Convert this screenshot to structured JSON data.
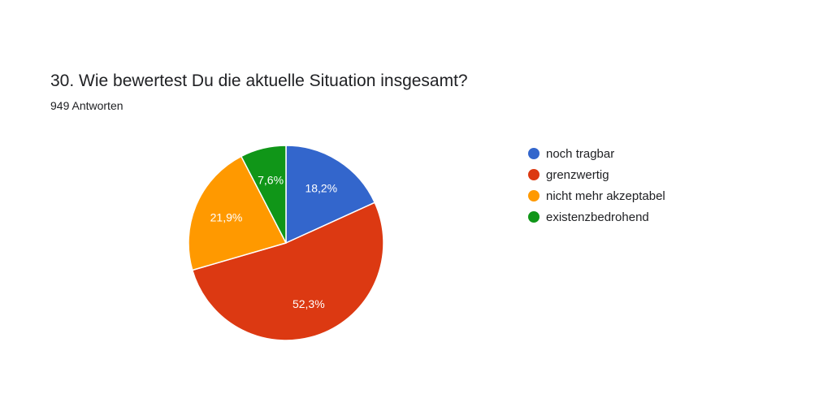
{
  "header": {
    "title": "30. Wie bewertest Du die aktuelle Situation insgesamt?",
    "responses": "949 Antworten"
  },
  "chart_data": {
    "type": "pie",
    "start_angle_deg": 90,
    "direction": "clockwise",
    "legend_position": "right",
    "slices": [
      {
        "name": "noch tragbar",
        "value": 18.2,
        "label": "18,2%",
        "color": "#3366cc"
      },
      {
        "name": "grenzwertig",
        "value": 52.3,
        "label": "52,3%",
        "color": "#dc3912"
      },
      {
        "name": "nicht mehr akzeptabel",
        "value": 21.9,
        "label": "21,9%",
        "color": "#ff9900"
      },
      {
        "name": "existenzbedrohend",
        "value": 7.6,
        "label": "7,6%",
        "color": "#109618"
      }
    ]
  }
}
